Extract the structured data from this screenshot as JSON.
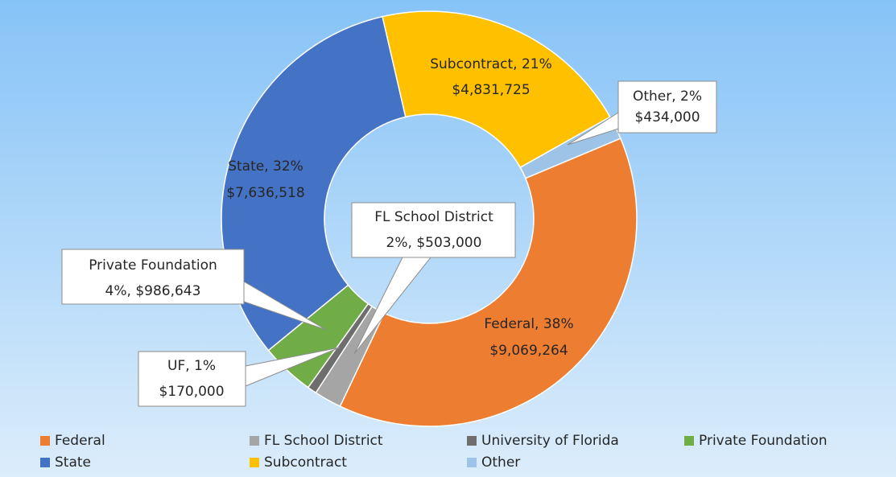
{
  "chart_data": {
    "type": "donut",
    "categories": [
      "Federal",
      "FL School District",
      "University of Florida",
      "Private Foundation",
      "State",
      "Subcontract",
      "Other"
    ],
    "values": [
      9069264,
      503000,
      170000,
      986643,
      7636518,
      4831725,
      434000
    ],
    "value_labels": [
      [
        "Federal, 38%",
        "$9,069,264"
      ],
      [
        "FL School District",
        "2%, $503,000"
      ],
      [
        "UF, 1%",
        "$170,000"
      ],
      [
        "Private Foundation",
        "4%, $986,643"
      ],
      [
        "State, 32%",
        "$7,636,518"
      ],
      [
        "Subcontract, 21%",
        "$4,831,725"
      ],
      [
        "Other, 2%",
        "$434,000"
      ]
    ],
    "colors": [
      "#ED7D31",
      "#A5A5A5",
      "#6E6E6E",
      "#70AD47",
      "#4472C4",
      "#FFC000",
      "#9DC3E6"
    ],
    "legend": "bottom"
  }
}
